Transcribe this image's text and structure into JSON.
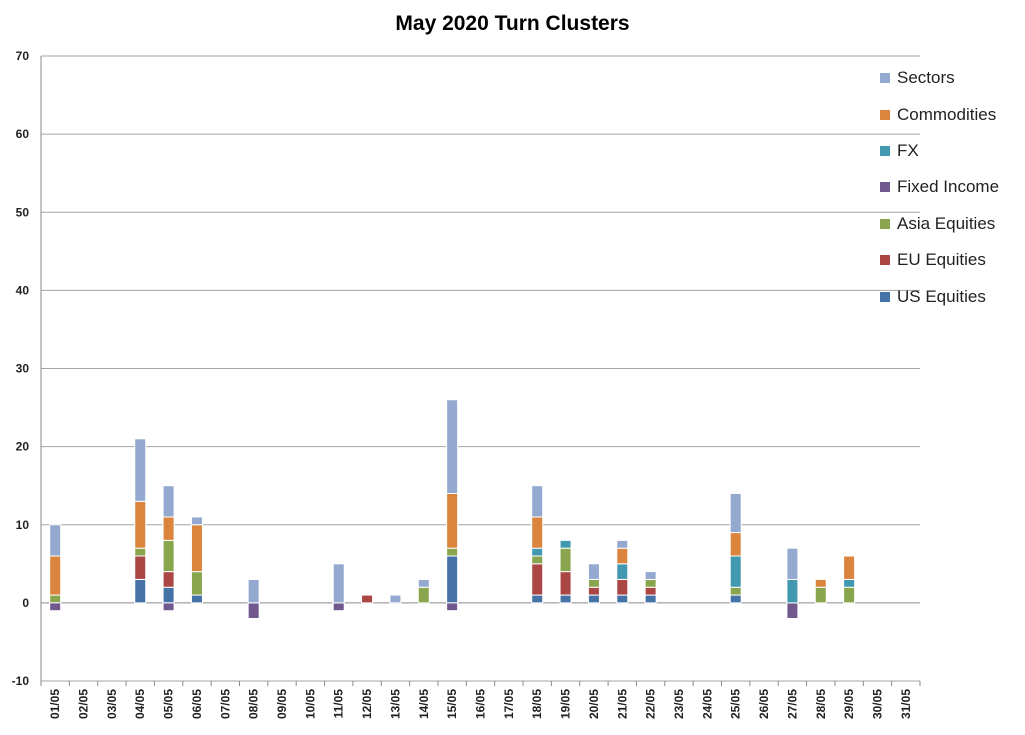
{
  "chart_data": {
    "type": "bar",
    "stacked": true,
    "title": "May 2020 Turn Clusters",
    "xlabel": "",
    "ylabel": "",
    "ylim": [
      -10,
      70
    ],
    "yticks": [
      -10,
      0,
      10,
      20,
      30,
      40,
      50,
      60,
      70
    ],
    "grid": true,
    "legend_position": "right",
    "categories": [
      "01/05",
      "02/05",
      "03/05",
      "04/05",
      "05/05",
      "06/05",
      "07/05",
      "08/05",
      "09/05",
      "10/05",
      "11/05",
      "12/05",
      "13/05",
      "14/05",
      "15/05",
      "16/05",
      "17/05",
      "18/05",
      "19/05",
      "20/05",
      "21/05",
      "22/05",
      "23/05",
      "24/05",
      "25/05",
      "26/05",
      "27/05",
      "28/05",
      "29/05",
      "30/05",
      "31/05"
    ],
    "series": [
      {
        "name": "US Equities",
        "color": "#4572A7",
        "values": [
          0,
          0,
          0,
          3,
          2,
          1,
          0,
          0,
          0,
          0,
          0,
          0,
          0,
          0,
          6,
          0,
          0,
          1,
          1,
          1,
          1,
          1,
          0,
          0,
          1,
          0,
          0,
          0,
          0,
          0,
          0
        ]
      },
      {
        "name": "EU Equities",
        "color": "#AA4643",
        "values": [
          0,
          0,
          0,
          3,
          2,
          0,
          0,
          0,
          0,
          0,
          0,
          1,
          0,
          0,
          0,
          0,
          0,
          4,
          3,
          1,
          2,
          1,
          0,
          0,
          0,
          0,
          0,
          0,
          0,
          0,
          0
        ]
      },
      {
        "name": "Asia Equities",
        "color": "#89A54E",
        "values": [
          1,
          0,
          0,
          1,
          4,
          3,
          0,
          0,
          0,
          0,
          0,
          0,
          0,
          2,
          1,
          0,
          0,
          1,
          3,
          1,
          0,
          1,
          0,
          0,
          1,
          0,
          0,
          2,
          2,
          0,
          0
        ]
      },
      {
        "name": "Fixed Income",
        "color": "#71588F",
        "values": [
          -1,
          0,
          0,
          0,
          -1,
          0,
          0,
          -2,
          0,
          0,
          -1,
          0,
          0,
          0,
          -1,
          0,
          0,
          0,
          0,
          0,
          0,
          0,
          0,
          0,
          0,
          0,
          -2,
          0,
          0,
          0,
          0
        ]
      },
      {
        "name": "FX",
        "color": "#4198AF",
        "values": [
          0,
          0,
          0,
          0,
          0,
          0,
          0,
          0,
          0,
          0,
          0,
          0,
          0,
          0,
          0,
          0,
          0,
          1,
          1,
          0,
          2,
          0,
          0,
          0,
          4,
          0,
          3,
          0,
          1,
          0,
          0
        ]
      },
      {
        "name": "Commodities",
        "color": "#DB843D",
        "values": [
          5,
          0,
          0,
          6,
          3,
          6,
          0,
          0,
          0,
          0,
          0,
          0,
          0,
          0,
          7,
          0,
          0,
          4,
          0,
          0,
          2,
          0,
          0,
          0,
          3,
          0,
          0,
          1,
          3,
          0,
          0
        ]
      },
      {
        "name": "Sectors",
        "color": "#93A9CF",
        "values": [
          4,
          0,
          0,
          8,
          4,
          1,
          0,
          3,
          0,
          0,
          5,
          0,
          1,
          1,
          12,
          0,
          0,
          4,
          0,
          2,
          1,
          1,
          0,
          0,
          5,
          0,
          4,
          0,
          0,
          0,
          0
        ]
      }
    ]
  }
}
